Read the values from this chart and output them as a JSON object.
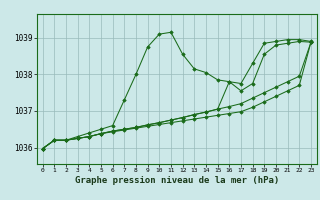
{
  "background_color": "#cce8e8",
  "plot_bg_color": "#cce8e8",
  "grid_color": "#99bbbb",
  "line_color": "#1a6b1a",
  "title": "Graphe pression niveau de la mer (hPa)",
  "title_fontsize": 6.5,
  "ylim": [
    1035.55,
    1039.65
  ],
  "xlim": [
    -0.5,
    23.5
  ],
  "yticks": [
    1036,
    1037,
    1038,
    1039
  ],
  "xticks": [
    0,
    1,
    2,
    3,
    4,
    5,
    6,
    7,
    8,
    9,
    10,
    11,
    12,
    13,
    14,
    15,
    16,
    17,
    18,
    19,
    20,
    21,
    22,
    23
  ],
  "series": [
    [
      1035.97,
      1036.2,
      1036.2,
      1036.3,
      1036.4,
      1036.5,
      1036.6,
      1037.3,
      1038.0,
      1038.75,
      1039.1,
      1039.15,
      1038.55,
      1038.15,
      1038.05,
      1037.85,
      1037.8,
      1037.75,
      1038.3,
      1038.85,
      1038.9,
      1038.95,
      1038.95,
      1038.9
    ],
    [
      1035.97,
      1036.2,
      1036.2,
      1036.25,
      1036.3,
      1036.38,
      1036.45,
      1036.5,
      1036.55,
      1036.62,
      1036.68,
      1036.75,
      1036.82,
      1036.9,
      1036.97,
      1037.05,
      1037.8,
      1037.55,
      1037.75,
      1038.55,
      1038.8,
      1038.85,
      1038.9,
      1038.88
    ],
    [
      1035.97,
      1036.2,
      1036.2,
      1036.25,
      1036.3,
      1036.38,
      1036.45,
      1036.5,
      1036.55,
      1036.62,
      1036.68,
      1036.75,
      1036.82,
      1036.9,
      1036.97,
      1037.05,
      1037.12,
      1037.2,
      1037.35,
      1037.5,
      1037.65,
      1037.8,
      1037.95,
      1038.88
    ],
    [
      1035.97,
      1036.2,
      1036.2,
      1036.25,
      1036.3,
      1036.38,
      1036.43,
      1036.48,
      1036.53,
      1036.58,
      1036.63,
      1036.68,
      1036.73,
      1036.78,
      1036.83,
      1036.88,
      1036.93,
      1036.98,
      1037.1,
      1037.25,
      1037.4,
      1037.55,
      1037.7,
      1038.88
    ]
  ]
}
